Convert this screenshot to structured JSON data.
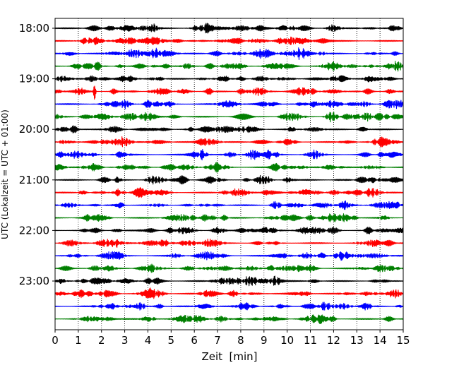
{
  "chart_data": {
    "type": "line",
    "title": "",
    "xlabel": "Zeit  [min]",
    "ylabel": "UTC (Lokalzeit = UTC + 01:00)",
    "xlim": [
      0,
      15
    ],
    "x_ticks": [
      "0",
      "1",
      "2",
      "3",
      "4",
      "5",
      "6",
      "7",
      "8",
      "9",
      "10",
      "11",
      "12",
      "13",
      "14",
      "15"
    ],
    "y_ticks": [
      "18:00",
      "19:00",
      "20:00",
      "21:00",
      "22:00",
      "23:00"
    ],
    "grid": "vertical dotted",
    "row_colors": [
      "#000000",
      "#ff0000",
      "#0000ff",
      "#007f00"
    ],
    "rows": [
      {
        "utc": "18:00"
      },
      {
        "utc": "18:15"
      },
      {
        "utc": "18:30"
      },
      {
        "utc": "18:45"
      },
      {
        "utc": "19:00"
      },
      {
        "utc": "19:15"
      },
      {
        "utc": "19:30"
      },
      {
        "utc": "19:45"
      },
      {
        "utc": "20:00"
      },
      {
        "utc": "20:15"
      },
      {
        "utc": "20:30"
      },
      {
        "utc": "20:45"
      },
      {
        "utc": "21:00"
      },
      {
        "utc": "21:15"
      },
      {
        "utc": "21:30"
      },
      {
        "utc": "21:45"
      },
      {
        "utc": "22:00"
      },
      {
        "utc": "22:15"
      },
      {
        "utc": "22:30"
      },
      {
        "utc": "22:45"
      },
      {
        "utc": "23:00"
      },
      {
        "utc": "23:15"
      },
      {
        "utc": "23:30"
      },
      {
        "utc": "23:45"
      }
    ],
    "events": [
      {
        "utc": "19:15",
        "minute": 1.7,
        "amplitude": 2.6
      }
    ]
  }
}
